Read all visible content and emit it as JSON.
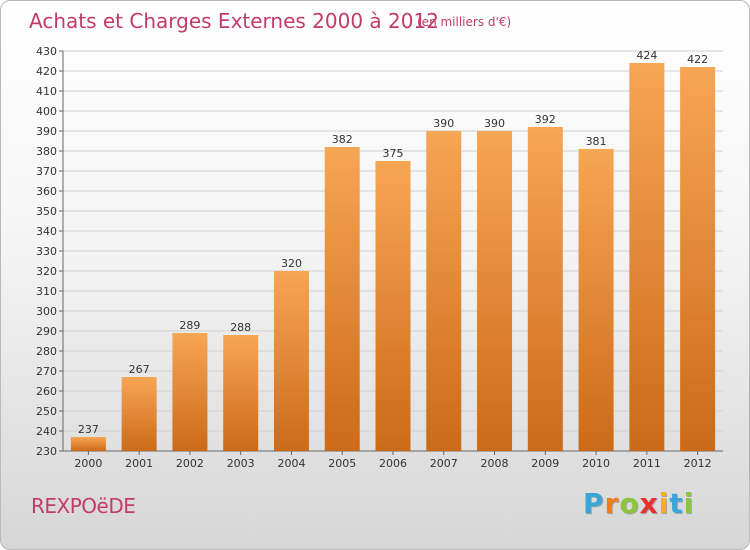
{
  "header": {
    "title": "Achats et Charges Externes 2000 à 2012",
    "subtitle": "(en milliers d'€)"
  },
  "footer": {
    "commune": "REXPOëDE",
    "logo_letters": [
      "P",
      "r",
      "o",
      "x",
      "i",
      "t",
      "i"
    ],
    "logo_colors": [
      "#3aa6d8",
      "#ef7d1a",
      "#8cc63e",
      "#e8312f",
      "#f2b01e",
      "#3aa6d8",
      "#8cc63e"
    ]
  },
  "colors": {
    "bar_light": "#f7a654",
    "bar_dark": "#cc6a18",
    "title": "#c23b6b",
    "grid": "#d0d0d0"
  },
  "chart_data": {
    "type": "bar",
    "title": "Achats et Charges Externes 2000 à 2012",
    "subtitle": "(en milliers d'€)",
    "categories": [
      "2000",
      "2001",
      "2002",
      "2003",
      "2004",
      "2005",
      "2006",
      "2007",
      "2008",
      "2009",
      "2010",
      "2011",
      "2012"
    ],
    "values": [
      237,
      267,
      289,
      288,
      320,
      382,
      375,
      390,
      390,
      392,
      381,
      424,
      422
    ],
    "ylim": [
      230,
      430
    ],
    "yticks": [
      230,
      240,
      250,
      260,
      270,
      280,
      290,
      300,
      310,
      320,
      330,
      340,
      350,
      360,
      370,
      380,
      390,
      400,
      410,
      420,
      430
    ],
    "grid": true,
    "legend": "none"
  }
}
